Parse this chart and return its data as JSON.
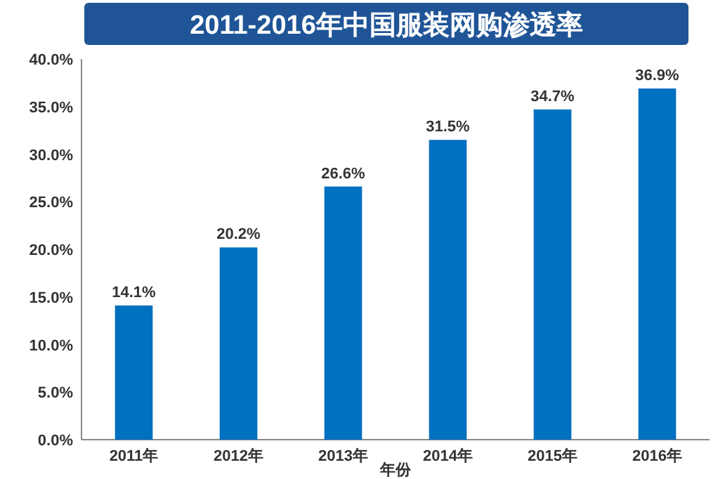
{
  "chart_data": {
    "type": "bar",
    "title": "2011-2016年中国服装网购渗透率",
    "xlabel": "年份",
    "categories": [
      "2011年",
      "2012年",
      "2013年",
      "2014年",
      "2015年",
      "2016年"
    ],
    "values": [
      14.1,
      20.2,
      26.6,
      31.5,
      34.7,
      36.9
    ],
    "value_labels": [
      "14.1%",
      "20.2%",
      "26.6%",
      "31.5%",
      "34.7%",
      "36.9%"
    ],
    "color": "#0070c0",
    "ylim": [
      0,
      40
    ],
    "yticks": [
      {
        "value": 0,
        "label": "0.0%"
      },
      {
        "value": 5,
        "label": "5.0%"
      },
      {
        "value": 10,
        "label": "10.0%"
      },
      {
        "value": 15,
        "label": "15.0%"
      },
      {
        "value": 20,
        "label": "20.0%"
      },
      {
        "value": 25,
        "label": "25.0%"
      },
      {
        "value": 30,
        "label": "30.0%"
      },
      {
        "value": 35,
        "label": "35.0%"
      },
      {
        "value": 40,
        "label": "40.0%"
      }
    ],
    "grid": false
  }
}
